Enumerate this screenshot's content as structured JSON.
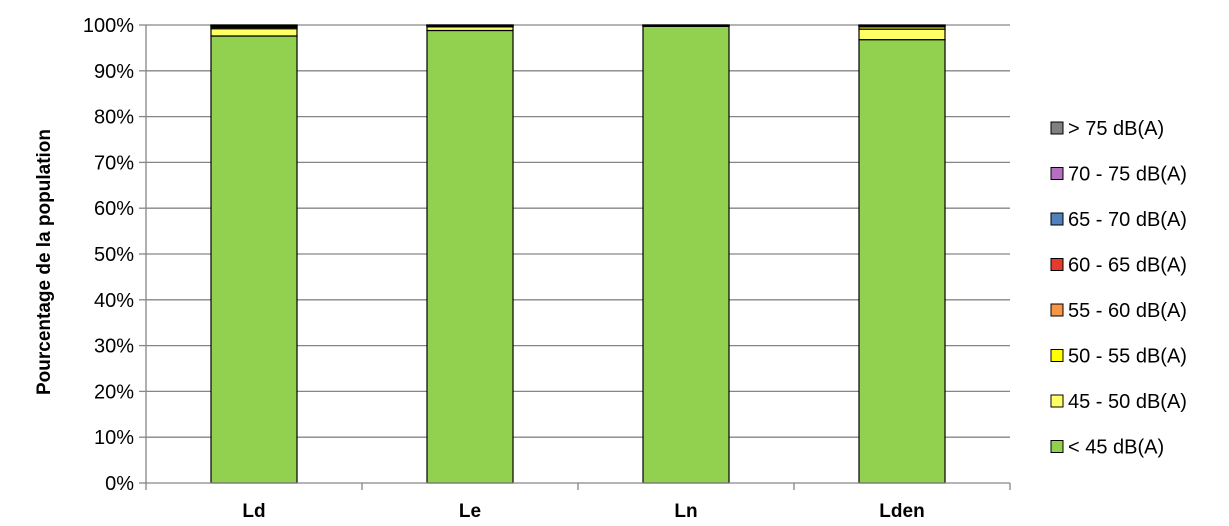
{
  "chart_data": {
    "type": "bar",
    "stacked": true,
    "percent": true,
    "title": "",
    "xlabel": "",
    "ylabel": "Pourcentage de la population",
    "ylim": [
      0,
      100
    ],
    "yticks": [
      "0%",
      "10%",
      "20%",
      "30%",
      "40%",
      "50%",
      "60%",
      "70%",
      "80%",
      "90%",
      "100%"
    ],
    "grid": true,
    "legend_position": "right",
    "categories": [
      "Ld",
      "Le",
      "Ln",
      "Lden"
    ],
    "series": [
      {
        "name": "< 45 dB(A)",
        "color": "#92d050",
        "values": [
          97.6,
          98.8,
          99.7,
          96.8
        ]
      },
      {
        "name": "45 - 50 dB(A)",
        "color": "#ffff66",
        "values": [
          1.6,
          0.8,
          0.2,
          2.3
        ]
      },
      {
        "name": "50 - 55 dB(A)",
        "color": "#ffff00",
        "values": [
          0.3,
          0.2,
          0.05,
          0.5
        ]
      },
      {
        "name": "55 - 60 dB(A)",
        "color": "#f79646",
        "values": [
          0.2,
          0.1,
          0.03,
          0.2
        ]
      },
      {
        "name": "60 - 65 dB(A)",
        "color": "#e53b2c",
        "values": [
          0.15,
          0.05,
          0.01,
          0.1
        ]
      },
      {
        "name": "65 - 70 dB(A)",
        "color": "#4f81bd",
        "values": [
          0.1,
          0.03,
          0.01,
          0.05
        ]
      },
      {
        "name": "70 - 75 dB(A)",
        "color": "#b56fc0",
        "values": [
          0.03,
          0.01,
          0.0,
          0.02
        ]
      },
      {
        "name": "> 75 dB(A)",
        "color": "#808080",
        "values": [
          0.02,
          0.01,
          0.0,
          0.03
        ]
      }
    ]
  }
}
